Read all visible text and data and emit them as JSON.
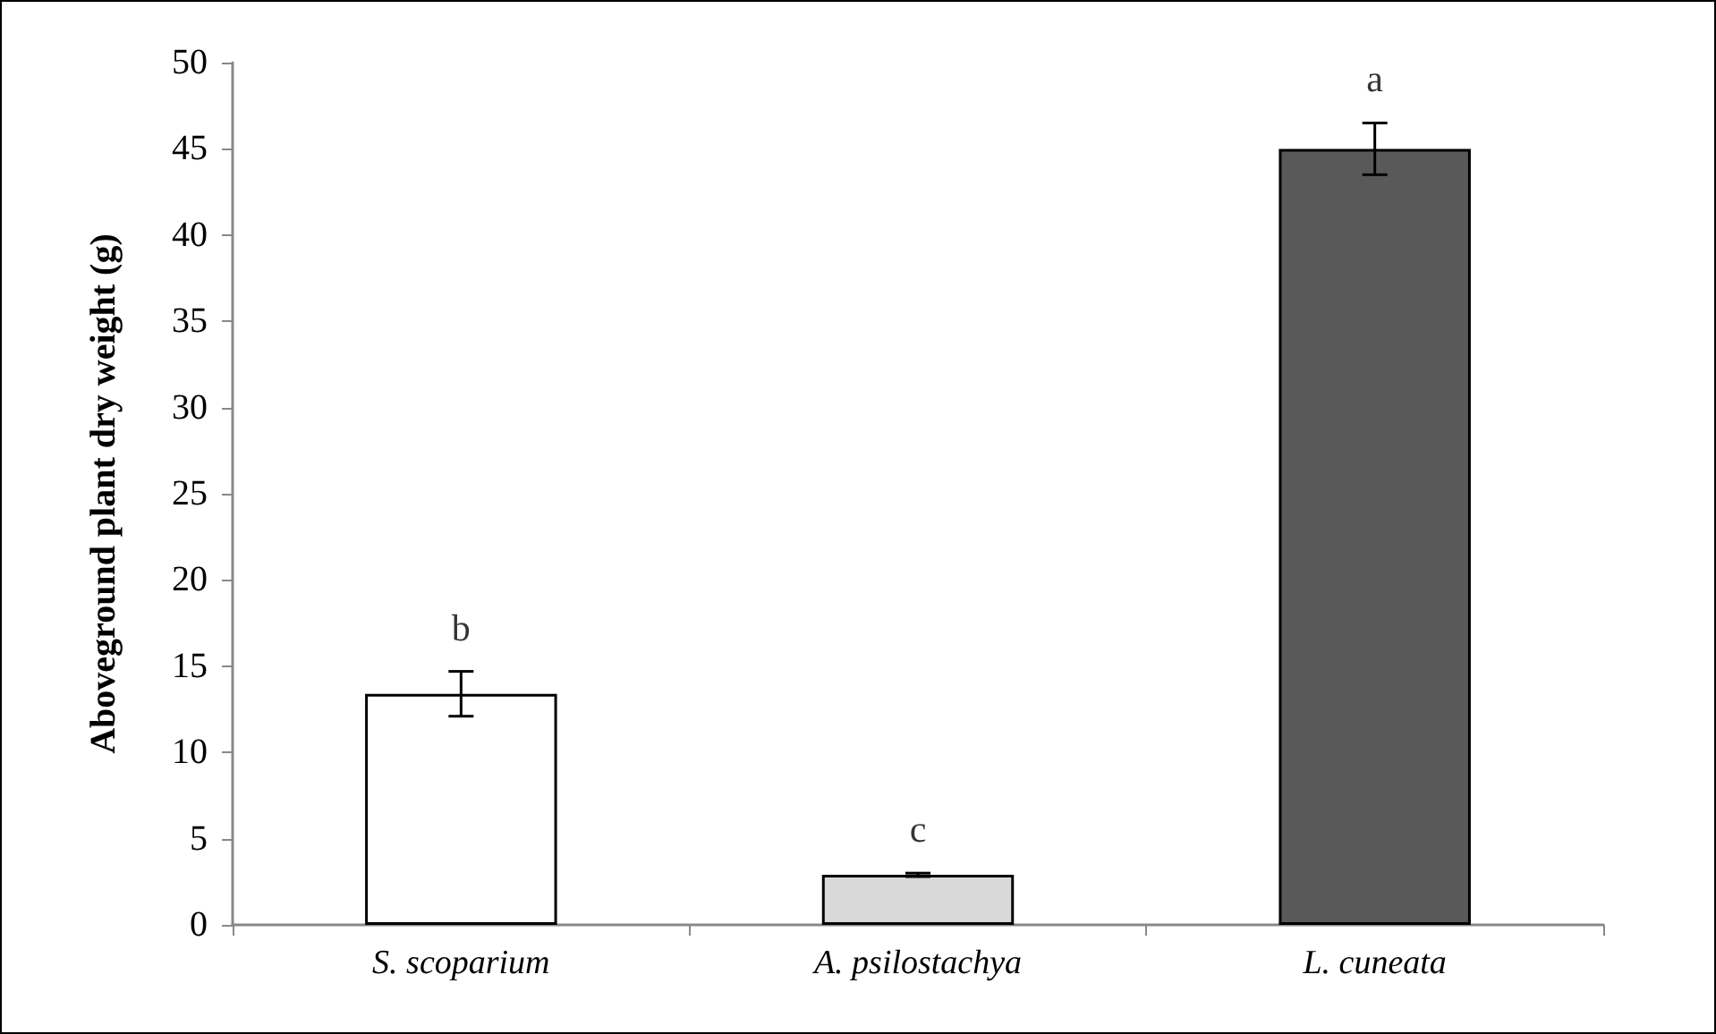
{
  "chart_data": {
    "type": "bar",
    "ylabel": "Aboveground plant dry weight (g)",
    "categories": [
      "S. scoparium",
      "A. psilostachya",
      "L. cuneata"
    ],
    "values": [
      13.4,
      2.9,
      45.0
    ],
    "colors": [
      "#ffffff",
      "#d9d9d9",
      "#595959"
    ],
    "errors": [
      1.3,
      0.1,
      1.5
    ],
    "ylim": [
      0,
      50
    ],
    "yticks": [
      0,
      5,
      10,
      15,
      20,
      25,
      30,
      35,
      40,
      45,
      50
    ],
    "grid": false,
    "annotations": [
      "b",
      "c",
      "a"
    ]
  }
}
